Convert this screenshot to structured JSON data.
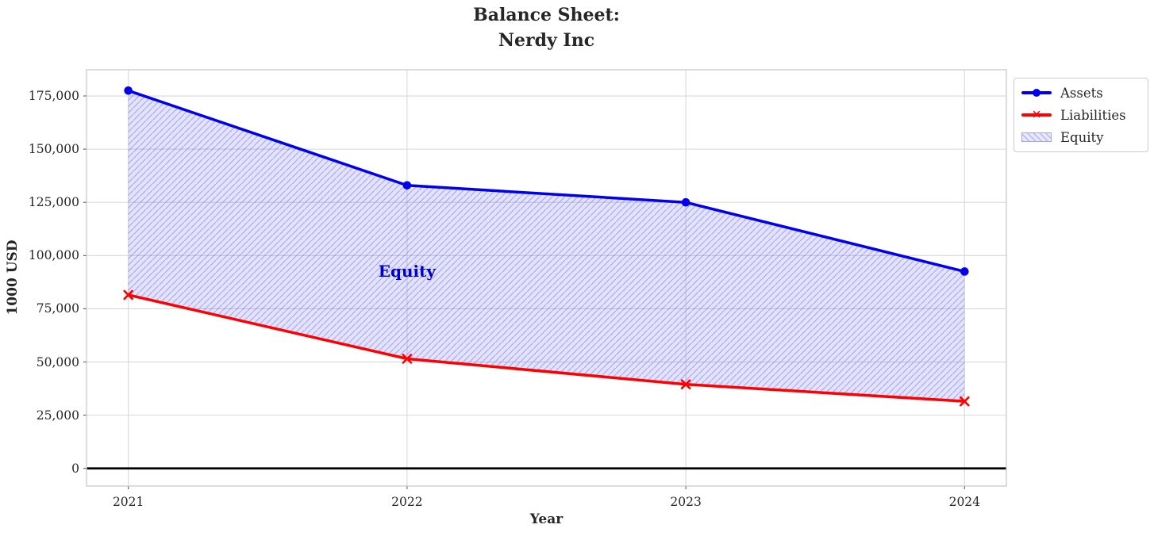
{
  "header": {
    "title_line1": "Balance Sheet:",
    "title_line2": "Nerdy Inc"
  },
  "chart_data": {
    "type": "line",
    "title": "Balance Sheet:\nNerdy Inc",
    "xlabel": "Year",
    "ylabel": "1000 USD",
    "x": [
      2021,
      2022,
      2023,
      2024
    ],
    "xtick_labels": [
      "2021",
      "2022",
      "2023",
      "2024"
    ],
    "series": [
      {
        "name": "Assets",
        "color": "#0000ee",
        "marker": "circle",
        "line_width": 3.5,
        "values": [
          177500,
          133000,
          125000,
          92500
        ]
      },
      {
        "name": "Liabilities",
        "color": "#ff0000",
        "marker": "x",
        "line_width": 3.5,
        "values": [
          81500,
          51500,
          39500,
          31500
        ]
      }
    ],
    "fill_between": {
      "name": "Equity",
      "between": [
        "Assets",
        "Liabilities"
      ],
      "fill_color": "#2828e6",
      "fill_opacity": 0.13,
      "hatch": "//",
      "hatch_color": "rgba(60,60,215,0.32)",
      "annotation": {
        "text": "Equity",
        "x": 2022,
        "y": 92500,
        "color": "#0000cc"
      }
    },
    "yticks": [
      0,
      25000,
      50000,
      75000,
      100000,
      125000,
      150000,
      175000
    ],
    "ytick_labels": [
      "0",
      "25,000",
      "50,000",
      "75,000",
      "100,000",
      "125,000",
      "150,000",
      "175,000"
    ],
    "ylim": [
      -8300,
      187300
    ],
    "xlim": [
      2020.85,
      2024.15
    ],
    "grid": true,
    "grid_color": "#d8d8d8",
    "spine_color": "#c9c9c9",
    "zero_line": {
      "y": 0,
      "color": "#000000",
      "width": 2.7
    },
    "legend": {
      "position": "upper-right-outside",
      "entries": [
        {
          "label": "Assets",
          "swatch": "line-circle",
          "color": "#0000ee"
        },
        {
          "label": "Liabilities",
          "swatch": "line-x",
          "color": "#ff0000"
        },
        {
          "label": "Equity",
          "swatch": "hatched-patch",
          "color": "#2828e6"
        }
      ]
    }
  }
}
